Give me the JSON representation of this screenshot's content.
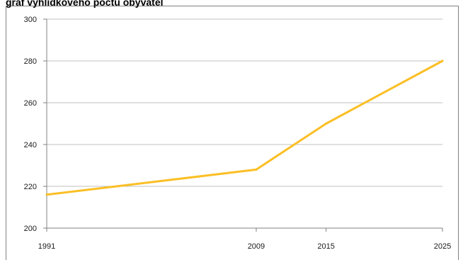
{
  "chart_data": {
    "type": "line",
    "title": "graf vyhlídkového počtu obyvatel",
    "xlabel": "",
    "ylabel": "",
    "categories": [
      "1991",
      "2009",
      "2015",
      "2025"
    ],
    "x": [
      1991,
      2009,
      2015,
      2025
    ],
    "series": [
      {
        "values": [
          216,
          228,
          250,
          280
        ],
        "color": "#FBBF25"
      }
    ],
    "ylim": [
      200,
      300
    ],
    "yticks": [
      200,
      220,
      240,
      260,
      280,
      300
    ],
    "grid": true,
    "gridColor": "#C0C0C0",
    "axisColor": "#808080",
    "legend": "none"
  }
}
